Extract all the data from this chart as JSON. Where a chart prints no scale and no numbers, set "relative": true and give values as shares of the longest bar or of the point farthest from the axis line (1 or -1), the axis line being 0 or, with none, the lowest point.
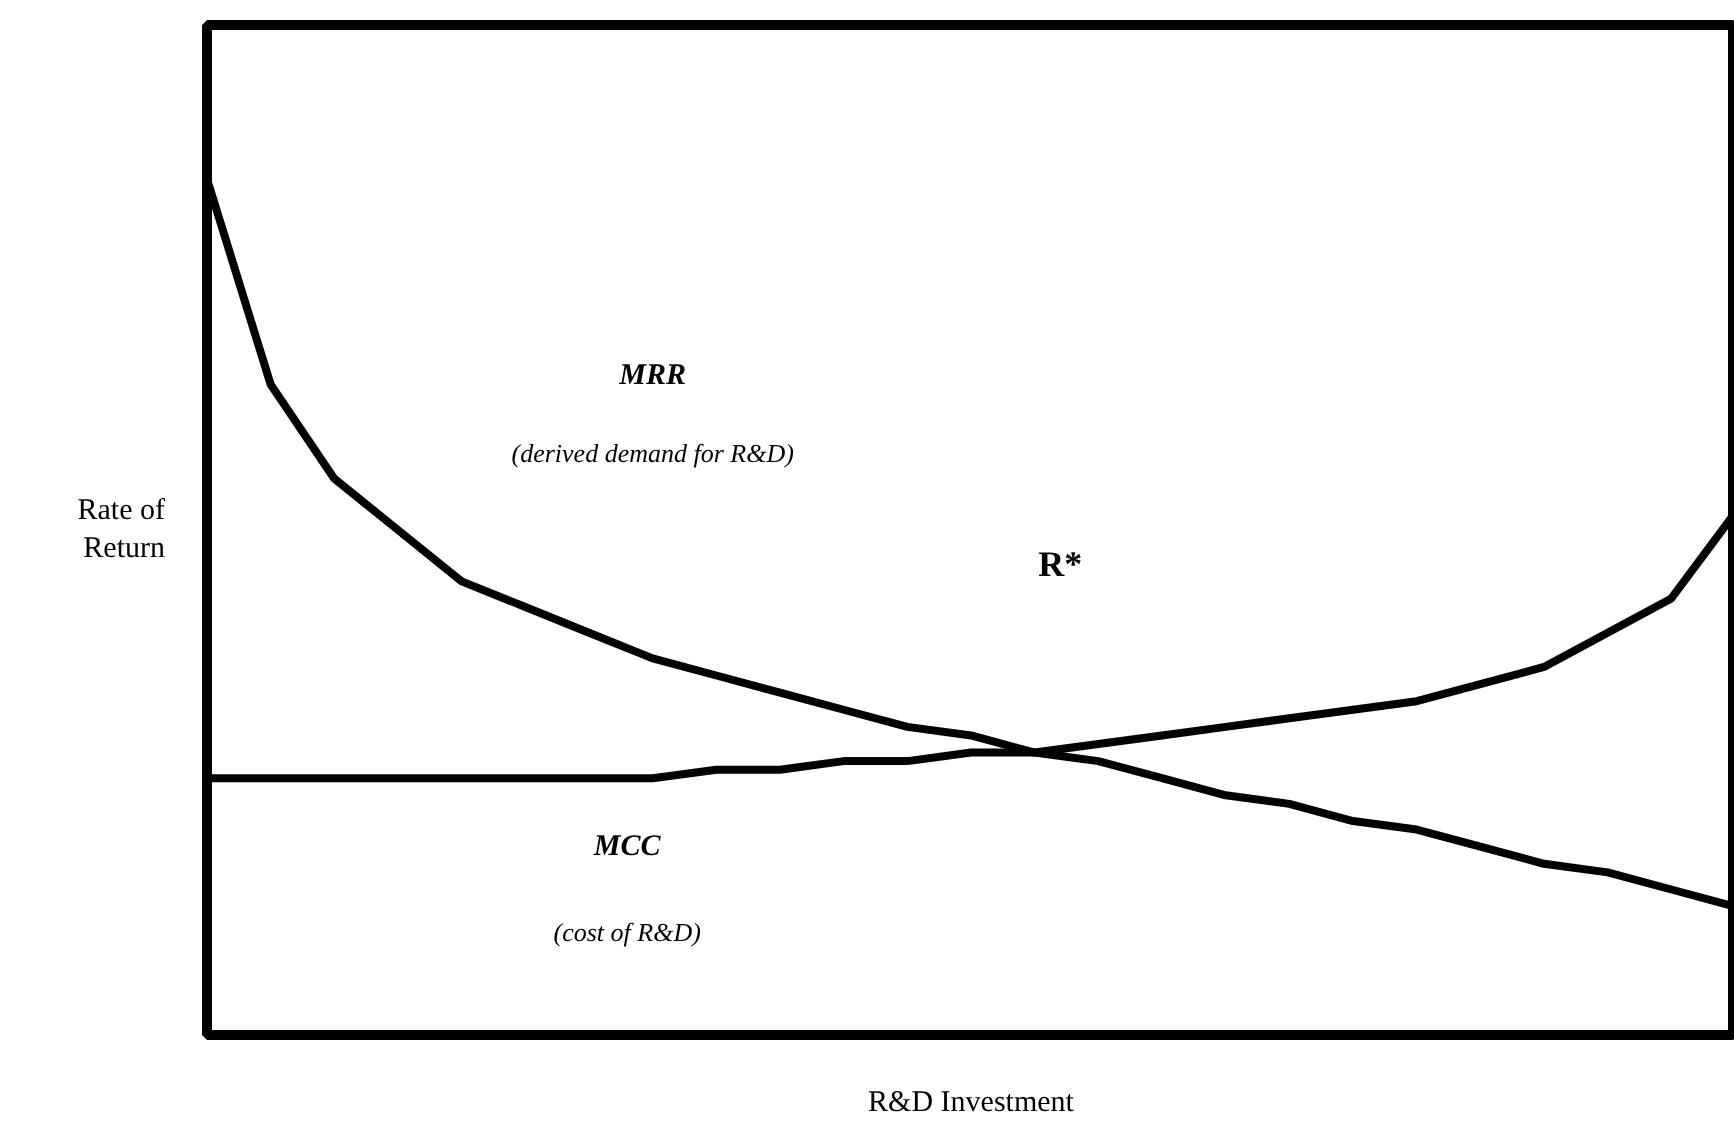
{
  "chart_data": {
    "type": "line",
    "relative": true,
    "xlabel": "R&D Investment",
    "ylabel": "Rate of\nReturn",
    "categories": [
      null,
      null,
      null,
      null,
      null,
      null,
      null,
      null,
      null,
      null,
      null,
      null,
      null,
      null,
      null,
      null,
      null,
      null,
      null,
      null,
      null,
      null,
      null,
      null,
      null
    ],
    "series": [
      {
        "color": "#000000",
        "values": [
          1.0,
          0.76,
          0.65,
          0.59,
          0.53,
          0.5,
          0.47,
          0.44,
          0.42,
          0.4,
          0.38,
          0.36,
          0.35,
          0.33,
          0.32,
          0.3,
          0.28,
          0.27,
          0.25,
          0.24,
          0.22,
          0.2,
          0.19,
          0.17,
          0.15
        ]
      },
      {
        "color": "#000000",
        "values": [
          0.3,
          0.3,
          0.3,
          0.3,
          0.3,
          0.3,
          0.3,
          0.3,
          0.31,
          0.31,
          0.32,
          0.32,
          0.33,
          0.33,
          0.34,
          0.35,
          0.36,
          0.37,
          0.38,
          0.39,
          0.41,
          0.43,
          0.47,
          0.51,
          0.61
        ]
      }
    ],
    "annotations": [
      "MRR",
      "(derived demand for R&D)",
      "R*",
      "MCC",
      "(cost of R&D)"
    ],
    "marker": "none",
    "line_style": "solid"
  }
}
